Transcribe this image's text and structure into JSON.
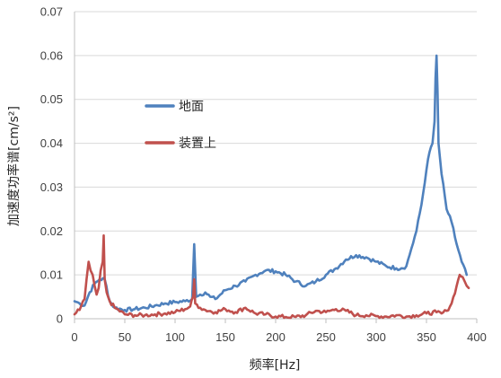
{
  "chart_data": {
    "type": "line",
    "title": "",
    "xlabel": "频率[Hz]",
    "ylabel": "加速度功率谱[cm/s²]",
    "xlim": [
      0,
      400
    ],
    "ylim": [
      0,
      0.07
    ],
    "x_ticks": [
      "0",
      "50",
      "100",
      "150",
      "200",
      "250",
      "300",
      "350",
      "400"
    ],
    "y_ticks": [
      "0",
      "0.01",
      "0.02",
      "0.03",
      "0.04",
      "0.05",
      "0.06",
      "0.07"
    ],
    "grid": "horizontal",
    "legend_position": "center-left",
    "series": [
      {
        "name": "地面",
        "color": "#4f81bd",
        "points": [
          [
            0,
            0.004
          ],
          [
            5,
            0.0035
          ],
          [
            10,
            0.003
          ],
          [
            15,
            0.006
          ],
          [
            20,
            0.008
          ],
          [
            25,
            0.009
          ],
          [
            30,
            0.009
          ],
          [
            35,
            0.004
          ],
          [
            40,
            0.0025
          ],
          [
            50,
            0.002
          ],
          [
            60,
            0.0022
          ],
          [
            70,
            0.0025
          ],
          [
            80,
            0.003
          ],
          [
            90,
            0.0035
          ],
          [
            100,
            0.0038
          ],
          [
            110,
            0.004
          ],
          [
            117,
            0.0045
          ],
          [
            119,
            0.017
          ],
          [
            121,
            0.005
          ],
          [
            125,
            0.0055
          ],
          [
            130,
            0.006
          ],
          [
            135,
            0.005
          ],
          [
            140,
            0.0045
          ],
          [
            150,
            0.0065
          ],
          [
            160,
            0.0075
          ],
          [
            170,
            0.0085
          ],
          [
            180,
            0.01
          ],
          [
            190,
            0.011
          ],
          [
            200,
            0.0108
          ],
          [
            210,
            0.01
          ],
          [
            220,
            0.0085
          ],
          [
            230,
            0.0075
          ],
          [
            240,
            0.0085
          ],
          [
            250,
            0.01
          ],
          [
            260,
            0.0115
          ],
          [
            270,
            0.0135
          ],
          [
            280,
            0.0145
          ],
          [
            290,
            0.014
          ],
          [
            300,
            0.013
          ],
          [
            310,
            0.012
          ],
          [
            320,
            0.0115
          ],
          [
            325,
            0.0115
          ],
          [
            330,
            0.012
          ],
          [
            335,
            0.016
          ],
          [
            340,
            0.02
          ],
          [
            345,
            0.026
          ],
          [
            350,
            0.034
          ],
          [
            353,
            0.038
          ],
          [
            356,
            0.04
          ],
          [
            358,
            0.045
          ],
          [
            359,
            0.055
          ],
          [
            360,
            0.06
          ],
          [
            361,
            0.052
          ],
          [
            362,
            0.04
          ],
          [
            365,
            0.033
          ],
          [
            370,
            0.025
          ],
          [
            375,
            0.022
          ],
          [
            380,
            0.017
          ],
          [
            385,
            0.013
          ],
          [
            390,
            0.01
          ]
        ]
      },
      {
        "name": "装置上",
        "color": "#c0504d",
        "points": [
          [
            0,
            0.001
          ],
          [
            5,
            0.002
          ],
          [
            10,
            0.0045
          ],
          [
            12,
            0.009
          ],
          [
            14,
            0.013
          ],
          [
            16,
            0.011
          ],
          [
            18,
            0.01
          ],
          [
            20,
            0.0075
          ],
          [
            22,
            0.0055
          ],
          [
            24,
            0.007
          ],
          [
            26,
            0.011
          ],
          [
            28,
            0.013
          ],
          [
            29,
            0.019
          ],
          [
            30,
            0.009
          ],
          [
            32,
            0.006
          ],
          [
            35,
            0.004
          ],
          [
            40,
            0.0025
          ],
          [
            50,
            0.001
          ],
          [
            60,
            0.0008
          ],
          [
            70,
            0.0008
          ],
          [
            80,
            0.001
          ],
          [
            90,
            0.0012
          ],
          [
            100,
            0.0015
          ],
          [
            110,
            0.0022
          ],
          [
            115,
            0.0028
          ],
          [
            118,
            0.005
          ],
          [
            119,
            0.009
          ],
          [
            120,
            0.0035
          ],
          [
            125,
            0.0025
          ],
          [
            130,
            0.002
          ],
          [
            140,
            0.0015
          ],
          [
            150,
            0.0022
          ],
          [
            160,
            0.0015
          ],
          [
            170,
            0.0025
          ],
          [
            180,
            0.0012
          ],
          [
            190,
            0.001
          ],
          [
            200,
            0.0005
          ],
          [
            210,
            0.0004
          ],
          [
            220,
            0.0004
          ],
          [
            230,
            0.0008
          ],
          [
            240,
            0.0018
          ],
          [
            250,
            0.0015
          ],
          [
            260,
            0.0022
          ],
          [
            270,
            0.0018
          ],
          [
            280,
            0.0008
          ],
          [
            290,
            0.0008
          ],
          [
            300,
            0.0006
          ],
          [
            310,
            0.0005
          ],
          [
            320,
            0.0008
          ],
          [
            330,
            0.0005
          ],
          [
            340,
            0.0008
          ],
          [
            350,
            0.0012
          ],
          [
            360,
            0.0015
          ],
          [
            365,
            0.0012
          ],
          [
            370,
            0.0018
          ],
          [
            375,
            0.0035
          ],
          [
            380,
            0.0075
          ],
          [
            383,
            0.01
          ],
          [
            386,
            0.0095
          ],
          [
            388,
            0.0085
          ],
          [
            390,
            0.0075
          ],
          [
            392,
            0.007
          ]
        ]
      }
    ]
  }
}
